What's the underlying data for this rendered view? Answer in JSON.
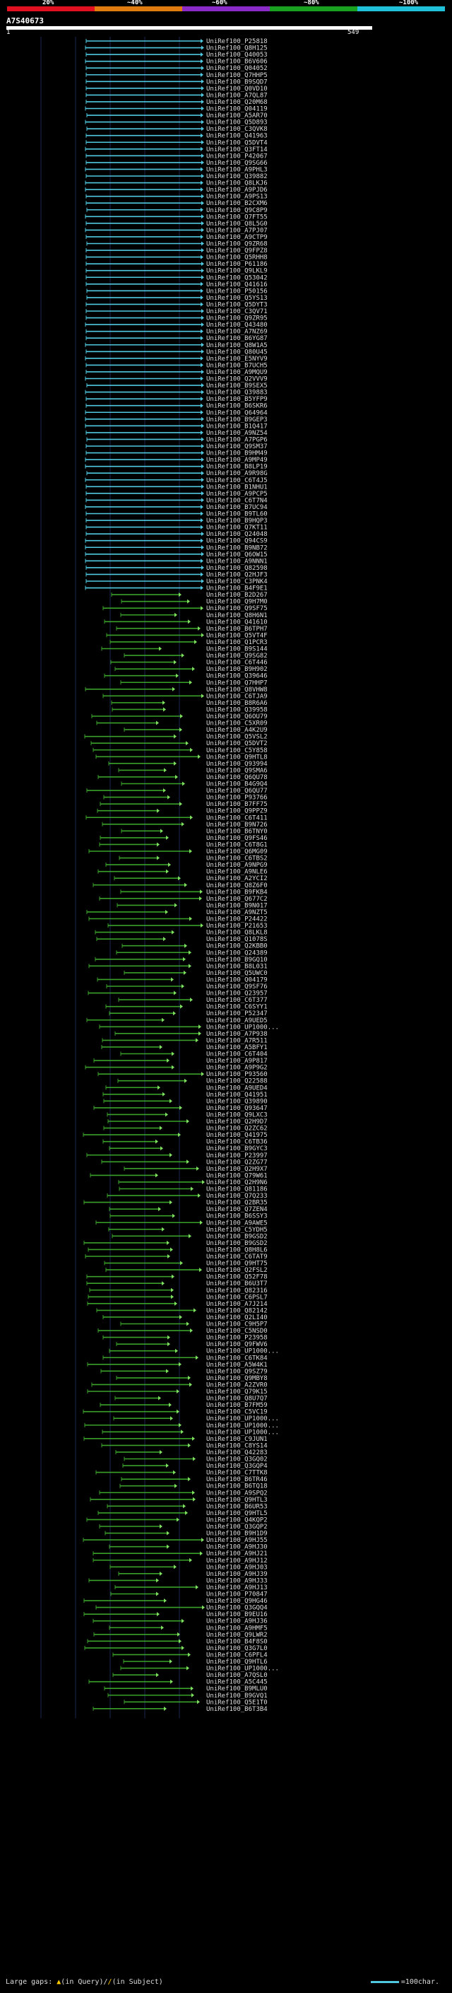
{
  "legend": {
    "ticks": [
      "20%",
      "~40%",
      "~60%",
      "~80%",
      "~100%"
    ],
    "colors": [
      "#e01020",
      "#e07b10",
      "#8a2bc8",
      "#1aa020",
      "#20c0d8"
    ]
  },
  "query": {
    "name": "A7S40673",
    "start": "1",
    "end": "549"
  },
  "colors": {
    "high": "#4fc8e0",
    "mid": "#3aa02a",
    "arrow_mid": "#7fe060"
  },
  "hits": [
    "UniRef100_P25818",
    "UniRef100_Q8H125",
    "UniRef100_Q40053",
    "UniRef100_B6V606",
    "UniRef100_Q04052",
    "UniRef100_Q7HHP5",
    "UniRef100_B9SQD7",
    "UniRef100_Q0VD10",
    "UniRef100_A7QL87",
    "UniRef100_Q20M68",
    "UniRef100_Q04119",
    "UniRef100_A5AR70",
    "UniRef100_Q5D893",
    "UniRef100_C3QVK8",
    "UniRef100_Q41963",
    "UniRef100_Q5DVT4",
    "UniRef100_Q3FT14",
    "UniRef100_P42067",
    "UniRef100_Q9SG66",
    "UniRef100_A9PHL3",
    "UniRef100_Q39882",
    "UniRef100_Q8LKJ6",
    "UniRef100_A9PJD6",
    "UniRef100_A9PS13",
    "UniRef100_B2CXM6",
    "UniRef100_Q9C8P9",
    "UniRef100_Q7FT55",
    "UniRef100_Q8L5G0",
    "UniRef100_A7PJ07",
    "UniRef100_A9CTP9",
    "UniRef100_Q9ZR68",
    "UniRef100_Q9FPZ8",
    "UniRef100_Q5RHH8",
    "UniRef100_P61186",
    "UniRef100_Q9LKL9",
    "UniRef100_Q53042",
    "UniRef100_Q41616",
    "UniRef100_P50156",
    "UniRef100_Q5YS13",
    "UniRef100_Q5DYT3",
    "UniRef100_C3QV71",
    "UniRef100_Q9ZR95",
    "UniRef100_Q43480",
    "UniRef100_A7NZ69",
    "UniRef100_B6YG87",
    "UniRef100_Q8W1A5",
    "UniRef100_Q80U45",
    "UniRef100_E5NYV9",
    "UniRef100_B7UCH5",
    "UniRef100_A9MQU9",
    "UniRef100_Q2VVV9",
    "UniRef100_B9SEX5",
    "UniRef100_Q39883",
    "UniRef100_B5YFP9",
    "UniRef100_B6SKR6",
    "UniRef100_Q64964",
    "UniRef100_B9GEP3",
    "UniRef100_B1Q417",
    "UniRef100_A9NZ54",
    "UniRef100_A7PGP6",
    "UniRef100_Q9SM37",
    "UniRef100_B9HM49",
    "UniRef100_A9MP49",
    "UniRef100_B8LP19",
    "UniRef100_A9R98G",
    "UniRef100_C6T4J5",
    "UniRef100_B1NHU1",
    "UniRef100_A9PCP5",
    "UniRef100_C6T7N4",
    "UniRef100_B7UC94",
    "UniRef100_B9TL60",
    "UniRef100_B9HQP3",
    "UniRef100_Q7KT11",
    "UniRef100_Q24048",
    "UniRef100_Q94CS9",
    "UniRef100_B9NB72",
    "UniRef100_Q6OW15",
    "UniRef100_A9NNN1",
    "UniRef100_Q82598",
    "UniRef100_Q2HJF3",
    "UniRef100_C3PNK4",
    "UniRef100_B4F9E1",
    "UniRef100_B2D267",
    "UniRef100_Q9H7M0",
    "UniRef100_Q9SF75",
    "UniRef100_Q8H6N1",
    "UniRef100_Q41610",
    "UniRef100_B6TPH7",
    "UniRef100_Q5VT4F",
    "UniRef100_Q1PCR3",
    "UniRef100_B9S144",
    "UniRef100_Q9SG82",
    "UniRef100_C6T446",
    "UniRef100_B9H902",
    "UniRef100_Q39646",
    "UniRef100_Q7HHP7",
    "UniRef100_Q8VHW8",
    "UniRef100_C6TJA9",
    "UniRef100_B8R6A6",
    "UniRef100_Q39958",
    "UniRef100_Q6OU79",
    "UniRef100_C5XR09",
    "UniRef100_A4K2U9",
    "UniRef100_Q5VSL2",
    "UniRef100_Q5DVT2",
    "UniRef100_C5Y858",
    "UniRef100_Q9HTL8",
    "UniRef100_Q93994",
    "UniRef100_Q9SMA6",
    "UniRef100_Q6QU78",
    "UniRef100_B4G9Q4",
    "UniRef100_Q6QU77",
    "UniRef100_P93766",
    "UniRef100_B7FF75",
    "UniRef100_Q9PPZ9",
    "UniRef100_C6T411",
    "UniRef100_B9N726",
    "UniRef100_B6TNY0",
    "UniRef100_Q9FS46",
    "UniRef100_C6T8G1",
    "UniRef100_Q6MG09",
    "UniRef100_C6TBS2",
    "UniRef100_A9NPG9",
    "UniRef100_A9NLE6",
    "UniRef100_A2YCI2",
    "UniRef100_Q8Z6F0",
    "UniRef100_B9FKB4",
    "UniRef100_Q677C2",
    "UniRef100_B9N017",
    "UniRef100_A9NZT5",
    "UniRef100_P24422",
    "UniRef100_P21653",
    "UniRef100_Q8LKL8",
    "UniRef100_Q1078S",
    "UniRef100_Q2KBB0",
    "UniRef100_Q24389",
    "UniRef100_B9GQ10",
    "UniRef100_B8L031",
    "UniRef100_Q5UWC0",
    "UniRef100_Q04179",
    "UniRef100_Q9SF76",
    "UniRef100_Q23957",
    "UniRef100_C6T377",
    "UniRef100_C6SYY1",
    "UniRef100_P52347",
    "UniRef100_A9UED5",
    "UniRef100_UP1000...",
    "UniRef100_A7P938",
    "UniRef100_A7R511",
    "UniRef100_A5BFY1",
    "UniRef100_C6T404",
    "UniRef100_A9P817",
    "UniRef100_A9P9G2",
    "UniRef100_P93560",
    "UniRef100_Q22588",
    "UniRef100_A9UED4",
    "UniRef100_Q41951",
    "UniRef100_Q39890",
    "UniRef100_Q93647",
    "UniRef100_Q9LXC3",
    "UniRef100_Q2H9D7",
    "UniRef100_Q2ZC62",
    "UniRef100_Q41975",
    "UniRef100_C6TB36",
    "UniRef100_B9GYC3",
    "UniRef100_P23997",
    "UniRef100_Q2ZG77",
    "UniRef100_Q2H9X7",
    "UniRef100_Q79W61",
    "UniRef100_Q2H9N6",
    "UniRef100_Q81186",
    "UniRef100_Q7Q233",
    "UniRef100_Q2BR35",
    "UniRef100_Q7ZEN4",
    "UniRef100_B6SSY3",
    "UniRef100_A9AWE5",
    "UniRef100_C5YDH5",
    "UniRef100_B9GSD2",
    "UniRef100_B9GSD2",
    "UniRef100_Q8H8L6",
    "UniRef100_C6TAT9",
    "UniRef100_Q9HT75",
    "UniRef100_Q2FSL2",
    "UniRef100_Q52F78",
    "UniRef100_B6U3T7",
    "UniRef100_Q82316",
    "UniRef100_C6PSL7",
    "UniRef100_A7J214",
    "UniRef100_Q82142",
    "UniRef100_Q2LI40",
    "UniRef100_C9H5P7",
    "UniRef100_C5NSD0",
    "UniRef100_P23958",
    "UniRef100_Q9FWV6",
    "UniRef100_UP1000...",
    "UniRef100_C6TK84",
    "UniRef100_A5W4K1",
    "UniRef100_Q9SZ79",
    "UniRef100_Q9MBY8",
    "UniRef100_A2ZVR0",
    "UniRef100_Q79K15",
    "UniRef100_Q8U7Q7",
    "UniRef100_B7FM59",
    "UniRef100_C5VC19",
    "UniRef100_UP1000...",
    "UniRef100_UP1000...",
    "UniRef100_UP1000...",
    "UniRef100_C9JUN1",
    "UniRef100_C8YS14",
    "UniRef100_Q42283",
    "UniRef100_Q3GQ02",
    "UniRef100_Q3GQP4",
    "UniRef100_C7TTK8",
    "UniRef100_B6TR46",
    "UniRef100_B6TQ18",
    "UniRef100_A9SPQ2",
    "UniRef100_Q9HTL3",
    "UniRef100_B6UR53",
    "UniRef100_Q9HTL5",
    "UniRef100_Q4KQP2",
    "UniRef100_Q3GQP2",
    "UniRef100_B9H1D9",
    "UniRef100_A9HJ55",
    "UniRef100_A9HJ30",
    "UniRef100_A9HJ21",
    "UniRef100_A9HJ12",
    "UniRef100_A9HJ03",
    "UniRef100_A9HJ39",
    "UniRef100_A9HJ33",
    "UniRef100_A9HJ13",
    "UniRef100_P70847",
    "UniRef100_Q9HG46",
    "UniRef100_Q3GQQ4",
    "UniRef100_B9EU16",
    "UniRef100_A9HJ36",
    "UniRef100_A9HMF5",
    "UniRef100_Q9LWR2",
    "UniRef100_B4F8S0",
    "UniRef100_Q3G7L0",
    "UniRef100_C6PFL4",
    "UniRef100_Q9HTL6",
    "UniRef100_UP1000...",
    "UniRef100_A7QSL0",
    "UniRef100_A5C445",
    "UniRef100_B9MLU0",
    "UniRef100_B9GVQ1",
    "UniRef100_Q5E1T0",
    "UniRef100_B6T3B4"
  ],
  "footer": {
    "large_gaps": "Large gaps:",
    "in_query": "(in Query)/",
    "in_subject": "(in Subject)",
    "scale": "=100char."
  }
}
